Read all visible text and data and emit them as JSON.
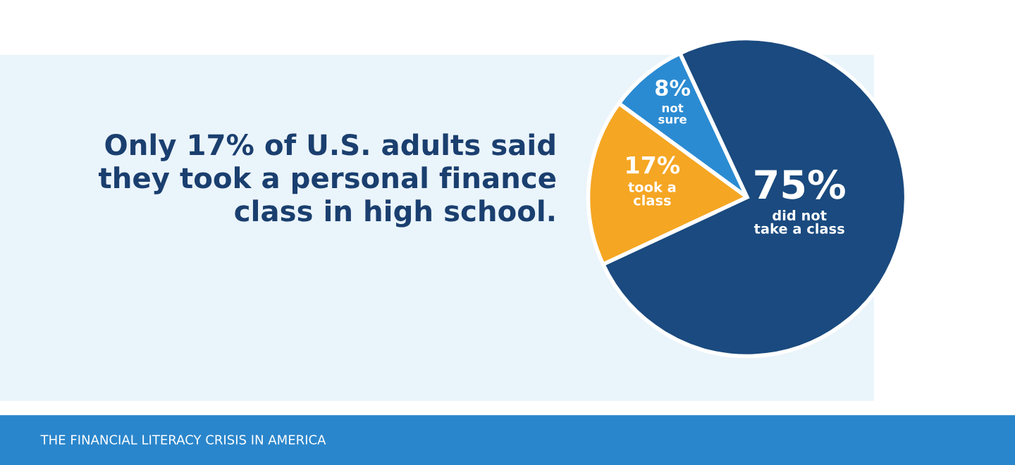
{
  "chart_data": {
    "type": "pie",
    "title": "Only 17% of U.S. adults said\nthey took a personal finance\nclass in high school.",
    "categories": [
      "not sure",
      "took a class",
      "did not take a class"
    ],
    "values": [
      8,
      17,
      75
    ],
    "value_labels": [
      "8%",
      "17%",
      "75%"
    ],
    "colors": [
      "#2b8bd2",
      "#f5a623",
      "#1a4a7f"
    ],
    "annotations": [
      "THE FINANCIAL LITERACY CRISIS IN AMERICA"
    ],
    "legend": false
  }
}
